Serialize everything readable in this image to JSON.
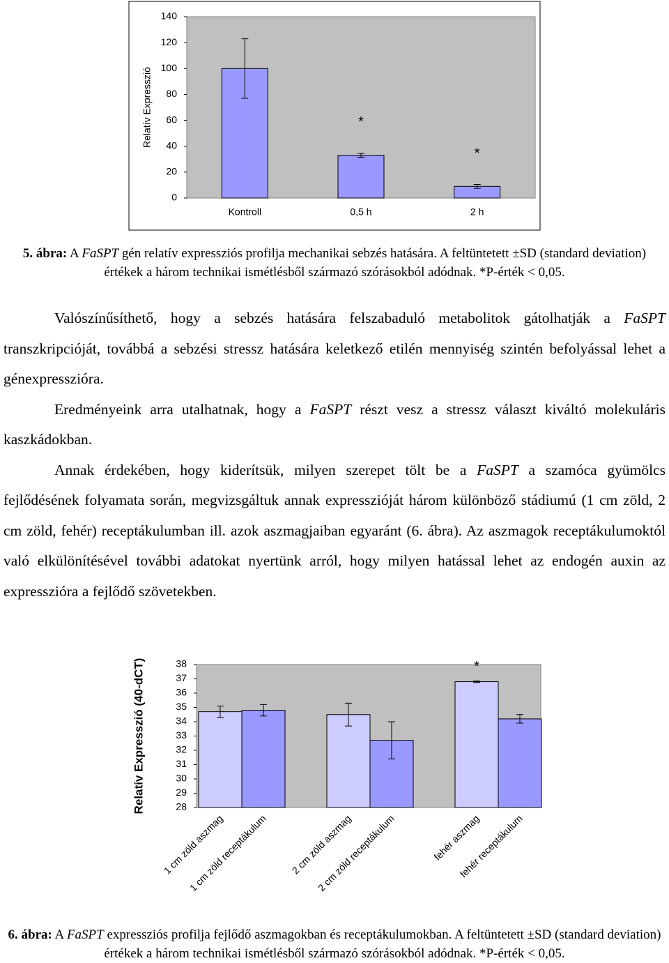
{
  "chart_data": [
    {
      "type": "bar",
      "y_label": "Relatív Expresszió",
      "categories": [
        "Kontroll",
        "0,5 h",
        "2 h"
      ],
      "values": [
        100,
        33,
        9
      ],
      "errors": [
        23,
        1.5,
        1.5
      ],
      "significance": [
        null,
        "*",
        "*"
      ],
      "color": "#9999ff",
      "ylim": [
        0,
        140
      ],
      "yticks": [
        0,
        20,
        40,
        60,
        80,
        100,
        120,
        140
      ]
    },
    {
      "type": "bar",
      "y_label": "Relatív Expresszió (40-dCT)",
      "categories": [
        "1 cm zöld aszmag",
        "1 cm zöld receptákulum",
        "2 cm zöld aszmag",
        "2 cm zöld receptákulum",
        "fehér aszmag",
        "fehér receptákulum"
      ],
      "values": [
        34.7,
        34.8,
        34.5,
        32.7,
        36.8,
        34.2
      ],
      "errors": [
        0.4,
        0.4,
        0.8,
        1.3,
        0.05,
        0.3
      ],
      "significance": [
        null,
        null,
        null,
        null,
        "*",
        null
      ],
      "colors": [
        "#ccccff",
        "#9999ff",
        "#ccccff",
        "#9999ff",
        "#ccccff",
        "#9999ff"
      ],
      "ylim": [
        28,
        38
      ],
      "yticks": [
        28,
        29,
        30,
        31,
        32,
        33,
        34,
        35,
        36,
        37,
        38
      ]
    }
  ],
  "captions": [
    {
      "label": "5. ábra:",
      "parts": [
        " A ",
        "FaSPT",
        " gén relatív expressziós profilja mechanikai sebzés hatására. A feltüntetett ±SD (standard deviation) értékek a három technikai ismétlésből származó szórásokból adódnak. *P-érték < 0,05."
      ]
    },
    {
      "label": "6. ábra:",
      "parts": [
        " A ",
        "FaSPT",
        " expressziós profilja fejlődő aszmagokban és receptákulumokban. A feltüntetett ±SD (standard deviation) értékek a három technikai ismétlésből származó szórásokból adódnak. *P-érték < 0,05."
      ]
    }
  ],
  "paragraphs": [
    [
      "Valószínűsíthető, hogy a sebzés hatására felszabaduló metabolitok gátolhatják a ",
      "FaSPT",
      " transzkripcióját, továbbá a sebzési stressz hatására keletkező etilén mennyiség szintén befolyással lehet a génexpresszióra."
    ],
    [
      "Eredményeink arra utalhatnak, hogy a ",
      "FaSPT",
      " részt vesz a stressz választ kiváltó molekuláris kaszkádokban."
    ],
    [
      "Annak érdekében, hogy kiderítsük, milyen szerepet tölt be a ",
      "FaSPT",
      " a szamóca gyümölcs fejlődésének folyamata során, megvizsgáltuk annak expresszióját három különböző stádiumú (1 cm zöld, 2 cm zöld, fehér) receptákulumban ill. azok aszmagjaiban egyaránt (6. ábra). Az aszmagok receptákulumoktól való elkülönítésével további adatokat nyertünk arról, hogy milyen hatással lehet az endogén auxin az expresszióra a fejlődő szövetekben."
    ]
  ]
}
